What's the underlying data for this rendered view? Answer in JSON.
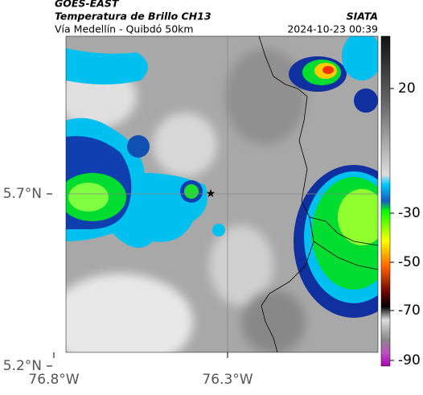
{
  "header": {
    "satellite": "GOES-EAST",
    "product": "Temperatura de Brillo CH13",
    "region": "Vía Medellín - Quibdó 50km",
    "source": "SIATA",
    "datetime": "2024-10-23 00:39"
  },
  "axes": {
    "x_labels": [
      "76.8°W",
      "76.3°W"
    ],
    "y_labels": [
      "5.7°N",
      "5.2°N"
    ]
  },
  "colorbar": {
    "ticks": [
      "20",
      "-30",
      "-50",
      "-70",
      "-90"
    ]
  }
}
